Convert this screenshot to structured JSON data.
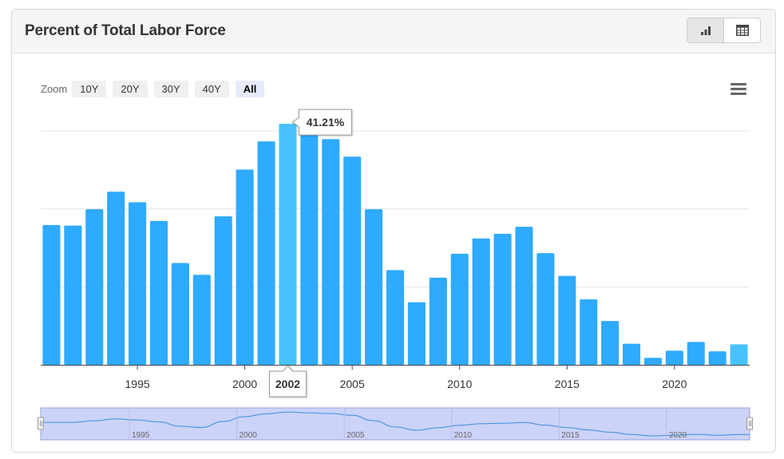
{
  "header": {
    "title": "Percent of Total Labor Force"
  },
  "toolbar": {
    "chart_view_icon": "bar-chart-icon",
    "table_view_icon": "table-icon"
  },
  "zoom": {
    "label": "Zoom",
    "options": [
      "10Y",
      "20Y",
      "30Y",
      "40Y",
      "All"
    ],
    "selected": "All"
  },
  "menu_icon": "hamburger-menu-icon",
  "tooltip": {
    "value": "41.21%",
    "year": "2002"
  },
  "colors": {
    "bar": "#2eaaff",
    "bar_highlight": "#48c2ff",
    "navigator_fill": "#ccd2f8",
    "navigator_line": "#3a8fe0"
  },
  "chart_data": {
    "type": "bar",
    "title": "Percent of Total Labor Force",
    "xlabel": "",
    "ylabel": "",
    "x": [
      1991,
      1992,
      1993,
      1994,
      1995,
      1996,
      1997,
      1998,
      1999,
      2000,
      2001,
      2002,
      2003,
      2004,
      2005,
      2006,
      2007,
      2008,
      2009,
      2010,
      2011,
      2012,
      2013,
      2014,
      2015,
      2016,
      2017,
      2018,
      2019,
      2020,
      2021,
      2022,
      2023
    ],
    "values": [
      23.9,
      23.8,
      26.6,
      29.6,
      27.8,
      24.6,
      17.4,
      15.4,
      25.4,
      33.4,
      38.2,
      41.21,
      39.8,
      38.6,
      35.6,
      26.6,
      16.2,
      10.7,
      14.9,
      19.0,
      21.6,
      22.4,
      23.6,
      19.1,
      15.2,
      11.2,
      7.5,
      3.6,
      1.2,
      2.4,
      3.9,
      2.3,
      3.5
    ],
    "highlight_indices": [
      11,
      32
    ],
    "xticks": [
      1995,
      2000,
      2005,
      2010,
      2015,
      2020
    ],
    "ylim": [
      0,
      40
    ],
    "grid": true,
    "legend": "none"
  }
}
